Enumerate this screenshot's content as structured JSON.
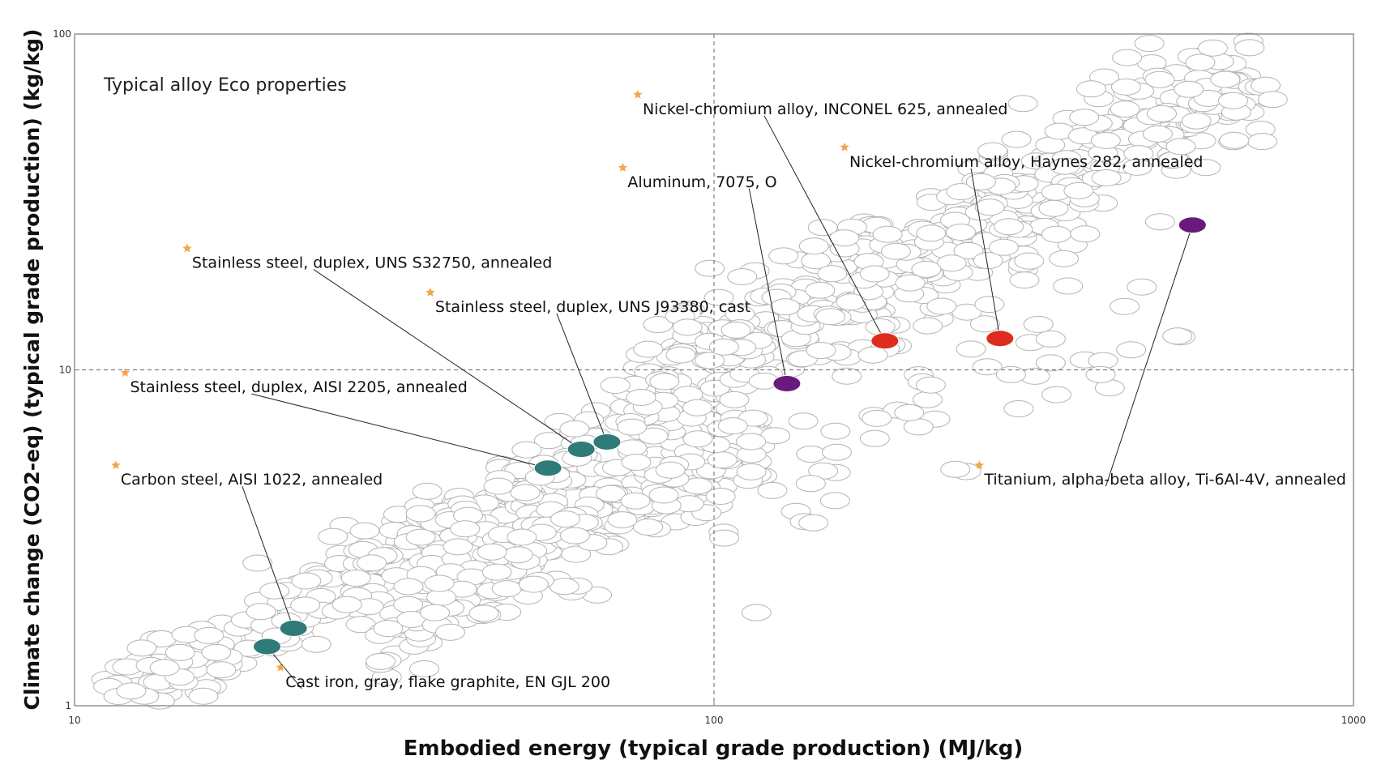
{
  "chart_data": {
    "type": "scatter",
    "title": "Typical alloy Eco properties",
    "xlabel": "Embodied energy (typical grade production) (MJ/kg)",
    "ylabel": "Climate change (CO2-eq) (typical grade production) (kg/kg)",
    "x_scale": "log",
    "y_scale": "log",
    "xlim": [
      10,
      1000
    ],
    "ylim": [
      1,
      100
    ],
    "x_ticks": [
      "10",
      "100",
      "1000"
    ],
    "y_ticks": [
      "1",
      "10",
      "100"
    ],
    "grid": "dashed at x=100 and y=10",
    "colors": {
      "background_points": "#b4b4b4",
      "steel": "#2e7b78",
      "aluminum_titanium": "#6a1a7c",
      "nickel": "#dc2d1e",
      "star": "#f0a74a"
    },
    "highlighted": [
      {
        "label": "Nickel-chromium alloy, INCONEL 625, annealed",
        "x": 185,
        "y": 12.2,
        "color": "#dc2d1e",
        "label_x": 76,
        "label_y": 66
      },
      {
        "label": "Nickel-chromium alloy, Haynes 282, annealed",
        "x": 280,
        "y": 12.4,
        "color": "#dc2d1e",
        "label_x": 160,
        "label_y": 46
      },
      {
        "label": "Aluminum, 7075, O",
        "x": 130,
        "y": 9.1,
        "color": "#6a1a7c",
        "label_x": 72,
        "label_y": 40
      },
      {
        "label": "Stainless steel, duplex, UNS S32750, annealed",
        "x": 62,
        "y": 5.8,
        "color": "#2e7b78",
        "label_x": 15,
        "label_y": 23
      },
      {
        "label": "Stainless steel, duplex, UNS J93380, cast",
        "x": 68,
        "y": 6.1,
        "color": "#2e7b78",
        "label_x": 36,
        "label_y": 17
      },
      {
        "label": "Stainless steel, duplex, AISI 2205, annealed",
        "x": 55,
        "y": 5.1,
        "color": "#2e7b78",
        "label_x": 12,
        "label_y": 9.8
      },
      {
        "label": "Carbon steel, AISI 1022, annealed",
        "x": 22,
        "y": 1.7,
        "color": "#2e7b78",
        "label_x": 11.6,
        "label_y": 5.2
      },
      {
        "label": "Cast iron, gray, flake graphite, EN GJL 200",
        "x": 20,
        "y": 1.5,
        "color": "#2e7b78",
        "label_x": 21,
        "label_y": 1.3
      },
      {
        "label": "Titanium, alpha-beta alloy, Ti-6Al-4V, annealed",
        "x": 560,
        "y": 27,
        "color": "#6a1a7c",
        "label_x": 260,
        "label_y": 5.2
      }
    ]
  }
}
